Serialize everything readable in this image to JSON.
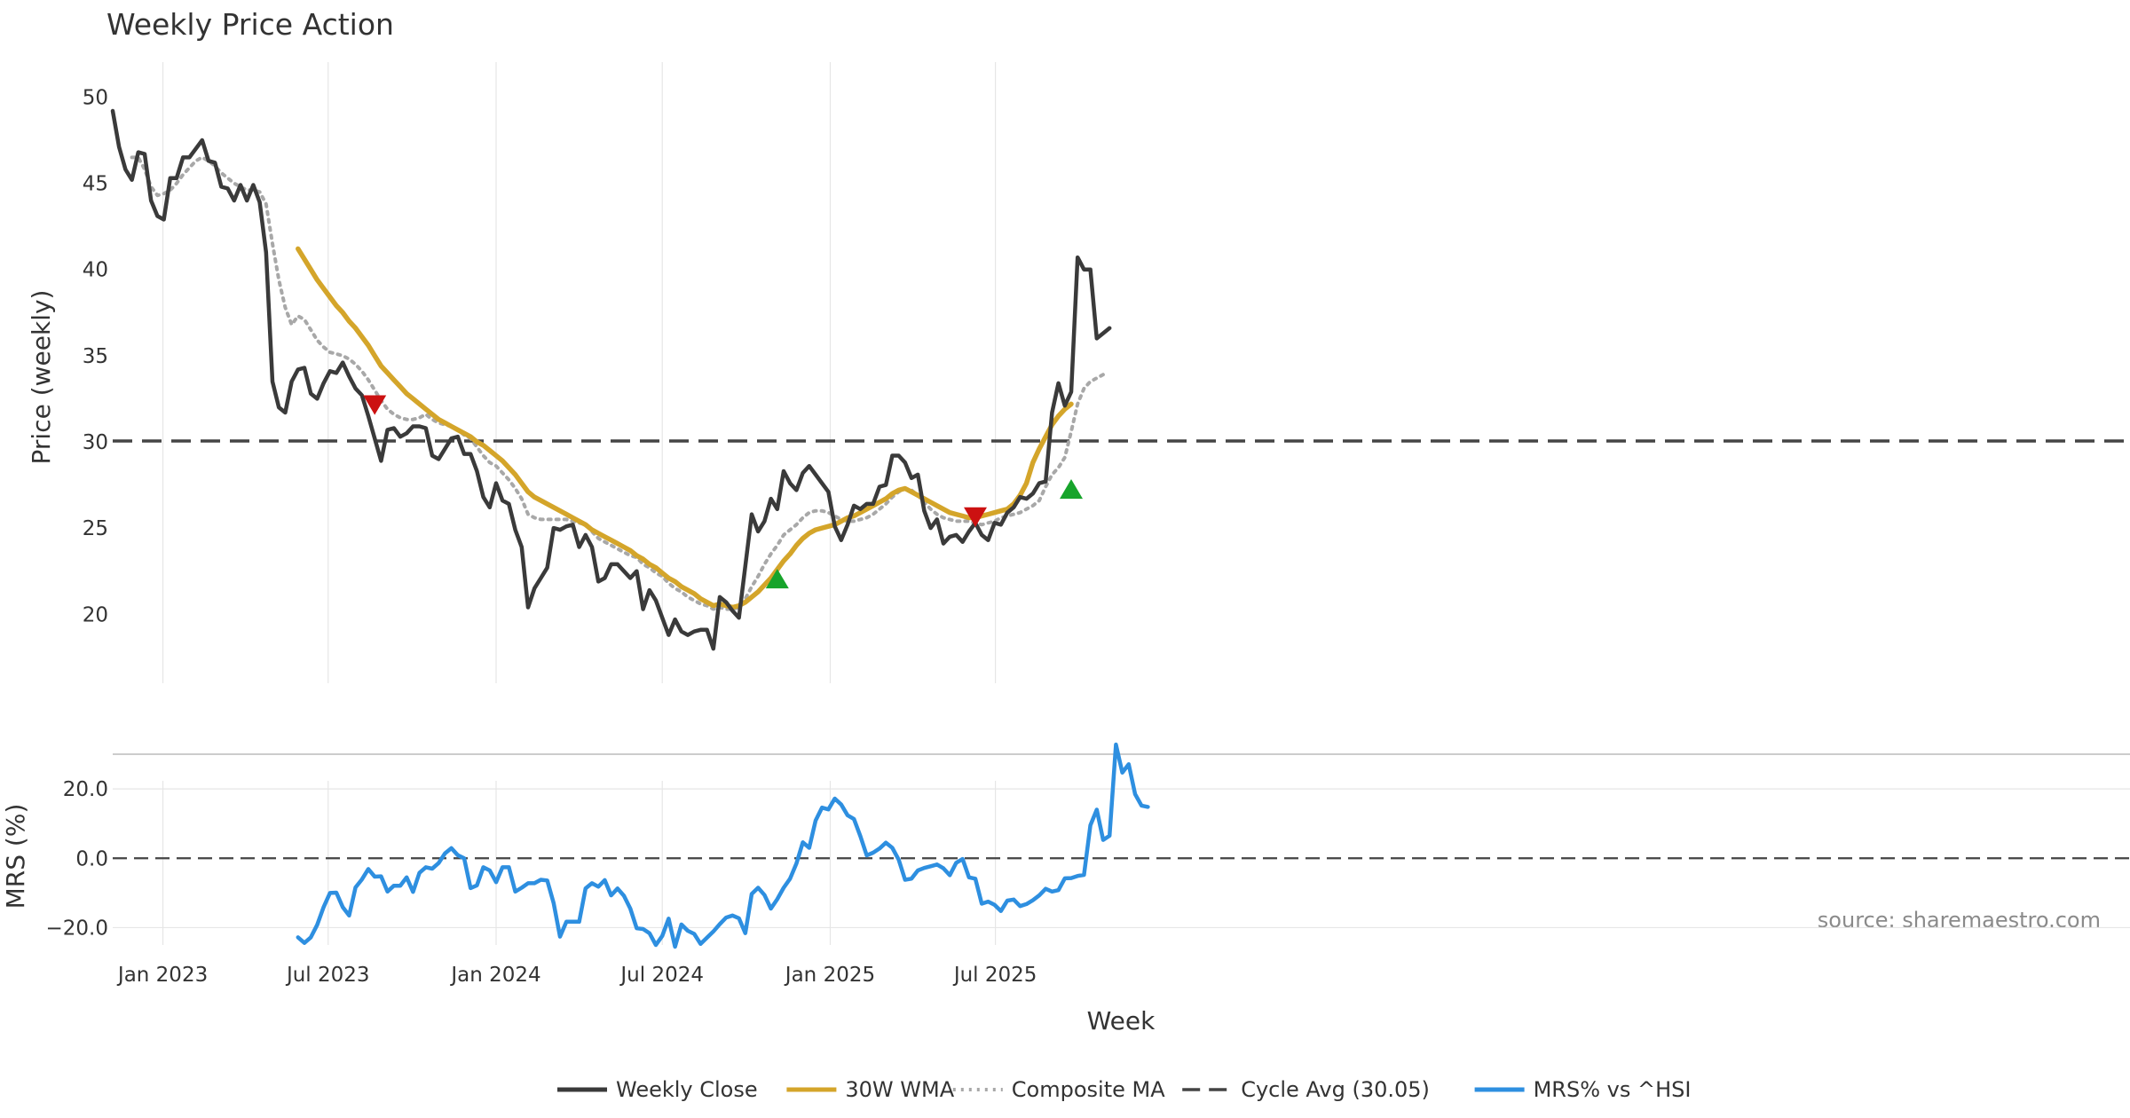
{
  "chart_data": [
    {
      "type": "line",
      "title": "Weekly Price Action",
      "xlabel": "Week",
      "ylabel": "Price (weekly)",
      "ylim": [
        16,
        51
      ],
      "yticks": [
        20,
        25,
        30,
        35,
        40,
        45,
        50
      ],
      "xtick_labels": [
        "Jan 2023",
        "Jul 2023",
        "Jan 2024",
        "Jul 2024",
        "Jan 2025",
        "Jul 2025"
      ],
      "x_start": "2022-11-07",
      "x_step_weeks": 1,
      "cycle_avg": 30.05,
      "colors": {
        "close": "#3a3a3a",
        "wma": "#d4a52a",
        "composite": "#a8a8a8",
        "cycle": "#444444",
        "buy": "#17a42b",
        "sell": "#cc1111",
        "grid": "#e6e6e6"
      },
      "series": [
        {
          "name": "Weekly Close",
          "values": [
            49.2,
            47.1,
            45.8,
            45.2,
            46.8,
            46.7,
            44,
            43.1,
            42.9,
            45.3,
            45.3,
            46.5,
            46.5,
            47,
            47.5,
            46.3,
            46.2,
            44.8,
            44.7,
            44,
            44.9,
            44,
            44.9,
            43.9,
            41,
            33.5,
            32,
            31.7,
            33.5,
            34.2,
            34.3,
            32.8,
            32.5,
            33.4,
            34.1,
            34,
            34.6,
            33.8,
            33.1,
            32.7,
            31.5,
            30.2,
            28.9,
            30.7,
            30.8,
            30.3,
            30.5,
            30.9,
            30.9,
            30.8,
            29.2,
            29,
            29.6,
            30.2,
            30.3,
            29.3,
            29.3,
            28.3,
            26.8,
            26.2,
            27.6,
            26.6,
            26.4,
            24.9,
            23.9,
            20.4,
            21.5,
            22.1,
            22.7,
            25,
            24.9,
            25.1,
            25.2,
            23.9,
            24.6,
            23.9,
            21.9,
            22.1,
            22.9,
            22.9,
            22.5,
            22.1,
            22.5,
            20.3,
            21.4,
            20.8,
            19.8,
            18.8,
            19.7,
            19,
            18.8,
            19,
            19.1,
            19.1,
            18,
            21,
            20.7,
            20.2,
            19.8,
            22.8,
            25.8,
            24.8,
            25.4,
            26.7,
            26.1,
            28.3,
            27.6,
            27.2,
            28.2,
            28.6,
            28.1,
            27.6,
            27.1,
            25.1,
            24.3,
            25.2,
            26.3,
            26.1,
            26.4,
            26.4,
            27.4,
            27.5,
            29.2,
            29.2,
            28.8,
            27.9,
            28.1,
            26,
            25,
            25.5,
            24.1,
            24.5,
            24.6,
            24.2,
            24.8,
            25.3,
            24.6,
            24.3,
            25.3,
            25.2,
            25.9,
            26.2,
            26.8,
            26.7,
            27,
            27.6,
            27.7,
            31.7,
            33.4,
            32.1,
            32.9,
            40.7,
            40,
            40,
            36,
            36.3,
            36.6
          ]
        },
        {
          "name": "30W WMA",
          "values": [
            null,
            null,
            null,
            null,
            null,
            null,
            null,
            null,
            null,
            null,
            null,
            null,
            null,
            null,
            null,
            null,
            null,
            null,
            null,
            null,
            null,
            null,
            null,
            null,
            null,
            null,
            null,
            null,
            null,
            41.2,
            40.6,
            40,
            39.4,
            38.9,
            38.4,
            37.9,
            37.5,
            37,
            36.6,
            36.1,
            35.6,
            35,
            34.4,
            34,
            33.6,
            33.2,
            32.8,
            32.5,
            32.2,
            31.9,
            31.6,
            31.3,
            31.1,
            30.9,
            30.7,
            30.5,
            30.3,
            30,
            29.8,
            29.5,
            29.2,
            28.9,
            28.5,
            28.1,
            27.6,
            27.1,
            26.8,
            26.6,
            26.4,
            26.2,
            26,
            25.8,
            25.6,
            25.4,
            25.2,
            24.9,
            24.7,
            24.5,
            24.3,
            24.1,
            23.9,
            23.7,
            23.4,
            23.2,
            22.9,
            22.7,
            22.4,
            22.1,
            21.9,
            21.6,
            21.4,
            21.2,
            20.9,
            20.7,
            20.5,
            20.6,
            20.5,
            20.4,
            20.5,
            20.7,
            21,
            21.3,
            21.7,
            22.1,
            22.6,
            23.1,
            23.5,
            24,
            24.4,
            24.7,
            24.9,
            25,
            25.1,
            25.2,
            25.4,
            25.6,
            25.7,
            25.9,
            26.1,
            26.3,
            26.5,
            26.7,
            27,
            27.2,
            27.3,
            27.1,
            26.9,
            26.7,
            26.5,
            26.3,
            26.1,
            25.9,
            25.8,
            25.7,
            25.6,
            25.6,
            25.7,
            25.8,
            25.9,
            26,
            26.1,
            26.4,
            26.9,
            27.6,
            28.8,
            29.6,
            30.3,
            31,
            31.5,
            31.9,
            32.2
          ]
        },
        {
          "name": "Composite MA",
          "values": [
            null,
            null,
            null,
            46.5,
            46.5,
            45.8,
            44.8,
            44.3,
            44.4,
            44.6,
            45,
            45.5,
            45.9,
            46.3,
            46.5,
            46.3,
            46,
            45.6,
            45.3,
            45,
            44.8,
            44.6,
            44.6,
            44.5,
            43.8,
            41.5,
            39.4,
            37.8,
            36.8,
            37.3,
            37.1,
            36.5,
            35.9,
            35.5,
            35.2,
            35.1,
            35,
            34.8,
            34.5,
            34.1,
            33.6,
            33,
            32.4,
            31.9,
            31.6,
            31.4,
            31.3,
            31.3,
            31.4,
            31.6,
            31.3,
            31.1,
            31,
            30.9,
            30.7,
            30.4,
            30.2,
            29.7,
            29.2,
            28.8,
            28.6,
            28.2,
            27.8,
            27.3,
            26.7,
            25.8,
            25.6,
            25.5,
            25.5,
            25.5,
            25.5,
            25.5,
            25.4,
            25.3,
            25.2,
            24.8,
            24.4,
            24.2,
            24,
            23.8,
            23.6,
            23.4,
            23.3,
            22.9,
            22.7,
            22.4,
            22.2,
            21.8,
            21.5,
            21.3,
            21,
            20.8,
            20.6,
            20.5,
            20.3,
            20.4,
            20.3,
            20.3,
            20.4,
            20.9,
            21.6,
            22.2,
            22.9,
            23.5,
            24,
            24.6,
            24.9,
            25.2,
            25.6,
            25.9,
            26,
            26,
            25.9,
            25.7,
            25.5,
            25.4,
            25.4,
            25.5,
            25.6,
            25.8,
            26.1,
            26.4,
            26.8,
            27.1,
            27.3,
            27.2,
            26.9,
            26.5,
            26.1,
            25.8,
            25.6,
            25.5,
            25.4,
            25.4,
            25.4,
            25.3,
            25.2,
            25.3,
            25.4,
            25.6,
            25.7,
            25.8,
            25.9,
            26.1,
            26.3,
            26.6,
            27.4,
            28.1,
            28.5,
            29.1,
            30.6,
            32.2,
            33.1,
            33.5,
            33.7,
            33.9
          ]
        }
      ],
      "hlines": [
        {
          "name": "Cycle Avg (30.05)",
          "value": 30.05
        }
      ],
      "markers": [
        {
          "type": "sell",
          "x_index": 41,
          "value": 32.2
        },
        {
          "type": "buy",
          "x_index": 104,
          "value": 22
        },
        {
          "type": "sell",
          "x_index": 135,
          "value": 25.7
        },
        {
          "type": "buy",
          "x_index": 150,
          "value": 27.2
        }
      ]
    },
    {
      "type": "line",
      "ylabel": "MRS (%)",
      "ylim": [
        -25,
        30
      ],
      "yticks": [
        -20,
        0,
        20
      ],
      "ytick_labels": [
        "−20.0",
        "0.0",
        "20.0"
      ],
      "zero_line": 0,
      "colors": {
        "mrs": "#2e8fe0",
        "zero": "#444444",
        "grid": "#e6e6e6",
        "separator": "#cccccc"
      },
      "series": [
        {
          "name": "MRS% vs ^HSI",
          "values": [
            null,
            null,
            null,
            null,
            null,
            null,
            null,
            null,
            null,
            null,
            null,
            null,
            null,
            null,
            null,
            null,
            null,
            null,
            null,
            null,
            null,
            null,
            null,
            null,
            null,
            null,
            null,
            null,
            null,
            -22.8,
            -24.4,
            -22.8,
            -19.2,
            -14.1,
            -10,
            -9.9,
            -14.1,
            -16.5,
            -8.4,
            -6.1,
            -3.1,
            -5.3,
            -5.2,
            -9.6,
            -7.9,
            -7.9,
            -5.5,
            -9.7,
            -4.2,
            -2.6,
            -3,
            -1.4,
            1.4,
            2.9,
            0.9,
            0,
            -8.6,
            -7.8,
            -2.6,
            -3.5,
            -6.9,
            -2.6,
            -2.6,
            -9.6,
            -8.5,
            -7.2,
            -7.2,
            -6.2,
            -6.4,
            -12.9,
            -22.6,
            -18.3,
            -18.3,
            -18.3,
            -8.7,
            -7.2,
            -8.2,
            -6.3,
            -10.7,
            -8.7,
            -10.8,
            -14.5,
            -20.2,
            -20.4,
            -21.6,
            -25,
            -22.4,
            -17.4,
            -25.5,
            -19.1,
            -20.9,
            -21.8,
            -24.7,
            -22.9,
            -21.1,
            -19,
            -17.1,
            -16.5,
            -17.3,
            -21.6,
            -10.3,
            -8.5,
            -10.6,
            -14.5,
            -11.8,
            -8.5,
            -5.9,
            -1.5,
            4.6,
            3,
            10.9,
            14.6,
            14.1,
            17.2,
            15.5,
            12.4,
            11.3,
            6.4,
            0.8,
            1.6,
            2.8,
            4.5,
            3,
            -0.4,
            -6.2,
            -5.9,
            -3.5,
            -2.8,
            -2.3,
            -1.8,
            -2.9,
            -4.9,
            -1.3,
            -0.2,
            -5.5,
            -5.9,
            -13.1,
            -12.5,
            -13.4,
            -15.2,
            -12.2,
            -11.9,
            -13.8,
            -13.2,
            -12.1,
            -10.7,
            -8.8,
            -9.6,
            -9.2,
            -5.8,
            -5.7,
            -5.1,
            -4.8,
            9.5,
            14,
            5.3,
            6.5,
            32.8,
            24.7,
            27.1,
            18.5,
            15.2,
            14.8
          ]
        }
      ],
      "source": "source: sharemaestro.com"
    }
  ],
  "legend": [
    {
      "label": "Weekly Close",
      "style": "solid",
      "color": "#3a3a3a"
    },
    {
      "label": "30W WMA",
      "style": "solid",
      "color": "#d4a52a"
    },
    {
      "label": "Composite MA",
      "style": "dotted",
      "color": "#a8a8a8"
    },
    {
      "label": "Cycle Avg (30.05)",
      "style": "dashed",
      "color": "#444444"
    },
    {
      "label": "MRS% vs ^HSI",
      "style": "solid",
      "color": "#2e8fe0"
    }
  ]
}
